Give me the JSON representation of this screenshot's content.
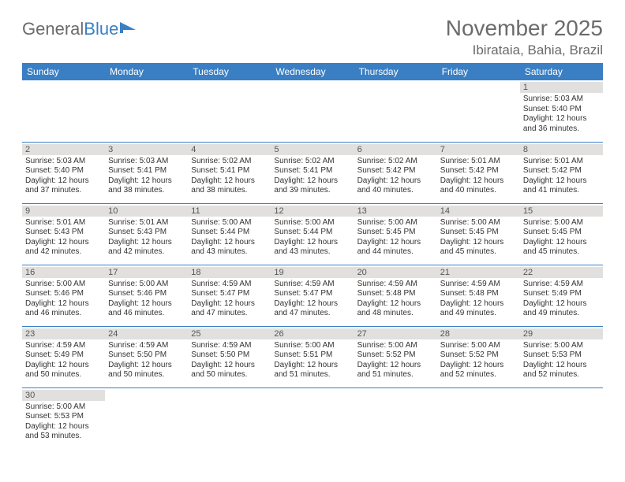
{
  "logo": {
    "text_gray": "General",
    "text_blue": "Blue"
  },
  "title": "November 2025",
  "location": "Ibirataia, Bahia, Brazil",
  "colors": {
    "header_bg": "#3a7fc4",
    "header_text": "#ffffff",
    "daynum_bg": "#e1e0de",
    "body_text": "#333333",
    "title_text": "#6b6b6b",
    "rule": "#3a7fc4"
  },
  "columns": [
    "Sunday",
    "Monday",
    "Tuesday",
    "Wednesday",
    "Thursday",
    "Friday",
    "Saturday"
  ],
  "weeks": [
    [
      null,
      null,
      null,
      null,
      null,
      null,
      {
        "day": "1",
        "sunrise": "Sunrise: 5:03 AM",
        "sunset": "Sunset: 5:40 PM",
        "day1": "Daylight: 12 hours",
        "day2": "and 36 minutes."
      }
    ],
    [
      {
        "day": "2",
        "sunrise": "Sunrise: 5:03 AM",
        "sunset": "Sunset: 5:40 PM",
        "day1": "Daylight: 12 hours",
        "day2": "and 37 minutes."
      },
      {
        "day": "3",
        "sunrise": "Sunrise: 5:03 AM",
        "sunset": "Sunset: 5:41 PM",
        "day1": "Daylight: 12 hours",
        "day2": "and 38 minutes."
      },
      {
        "day": "4",
        "sunrise": "Sunrise: 5:02 AM",
        "sunset": "Sunset: 5:41 PM",
        "day1": "Daylight: 12 hours",
        "day2": "and 38 minutes."
      },
      {
        "day": "5",
        "sunrise": "Sunrise: 5:02 AM",
        "sunset": "Sunset: 5:41 PM",
        "day1": "Daylight: 12 hours",
        "day2": "and 39 minutes."
      },
      {
        "day": "6",
        "sunrise": "Sunrise: 5:02 AM",
        "sunset": "Sunset: 5:42 PM",
        "day1": "Daylight: 12 hours",
        "day2": "and 40 minutes."
      },
      {
        "day": "7",
        "sunrise": "Sunrise: 5:01 AM",
        "sunset": "Sunset: 5:42 PM",
        "day1": "Daylight: 12 hours",
        "day2": "and 40 minutes."
      },
      {
        "day": "8",
        "sunrise": "Sunrise: 5:01 AM",
        "sunset": "Sunset: 5:42 PM",
        "day1": "Daylight: 12 hours",
        "day2": "and 41 minutes."
      }
    ],
    [
      {
        "day": "9",
        "sunrise": "Sunrise: 5:01 AM",
        "sunset": "Sunset: 5:43 PM",
        "day1": "Daylight: 12 hours",
        "day2": "and 42 minutes."
      },
      {
        "day": "10",
        "sunrise": "Sunrise: 5:01 AM",
        "sunset": "Sunset: 5:43 PM",
        "day1": "Daylight: 12 hours",
        "day2": "and 42 minutes."
      },
      {
        "day": "11",
        "sunrise": "Sunrise: 5:00 AM",
        "sunset": "Sunset: 5:44 PM",
        "day1": "Daylight: 12 hours",
        "day2": "and 43 minutes."
      },
      {
        "day": "12",
        "sunrise": "Sunrise: 5:00 AM",
        "sunset": "Sunset: 5:44 PM",
        "day1": "Daylight: 12 hours",
        "day2": "and 43 minutes."
      },
      {
        "day": "13",
        "sunrise": "Sunrise: 5:00 AM",
        "sunset": "Sunset: 5:45 PM",
        "day1": "Daylight: 12 hours",
        "day2": "and 44 minutes."
      },
      {
        "day": "14",
        "sunrise": "Sunrise: 5:00 AM",
        "sunset": "Sunset: 5:45 PM",
        "day1": "Daylight: 12 hours",
        "day2": "and 45 minutes."
      },
      {
        "day": "15",
        "sunrise": "Sunrise: 5:00 AM",
        "sunset": "Sunset: 5:45 PM",
        "day1": "Daylight: 12 hours",
        "day2": "and 45 minutes."
      }
    ],
    [
      {
        "day": "16",
        "sunrise": "Sunrise: 5:00 AM",
        "sunset": "Sunset: 5:46 PM",
        "day1": "Daylight: 12 hours",
        "day2": "and 46 minutes."
      },
      {
        "day": "17",
        "sunrise": "Sunrise: 5:00 AM",
        "sunset": "Sunset: 5:46 PM",
        "day1": "Daylight: 12 hours",
        "day2": "and 46 minutes."
      },
      {
        "day": "18",
        "sunrise": "Sunrise: 4:59 AM",
        "sunset": "Sunset: 5:47 PM",
        "day1": "Daylight: 12 hours",
        "day2": "and 47 minutes."
      },
      {
        "day": "19",
        "sunrise": "Sunrise: 4:59 AM",
        "sunset": "Sunset: 5:47 PM",
        "day1": "Daylight: 12 hours",
        "day2": "and 47 minutes."
      },
      {
        "day": "20",
        "sunrise": "Sunrise: 4:59 AM",
        "sunset": "Sunset: 5:48 PM",
        "day1": "Daylight: 12 hours",
        "day2": "and 48 minutes."
      },
      {
        "day": "21",
        "sunrise": "Sunrise: 4:59 AM",
        "sunset": "Sunset: 5:48 PM",
        "day1": "Daylight: 12 hours",
        "day2": "and 49 minutes."
      },
      {
        "day": "22",
        "sunrise": "Sunrise: 4:59 AM",
        "sunset": "Sunset: 5:49 PM",
        "day1": "Daylight: 12 hours",
        "day2": "and 49 minutes."
      }
    ],
    [
      {
        "day": "23",
        "sunrise": "Sunrise: 4:59 AM",
        "sunset": "Sunset: 5:49 PM",
        "day1": "Daylight: 12 hours",
        "day2": "and 50 minutes."
      },
      {
        "day": "24",
        "sunrise": "Sunrise: 4:59 AM",
        "sunset": "Sunset: 5:50 PM",
        "day1": "Daylight: 12 hours",
        "day2": "and 50 minutes."
      },
      {
        "day": "25",
        "sunrise": "Sunrise: 4:59 AM",
        "sunset": "Sunset: 5:50 PM",
        "day1": "Daylight: 12 hours",
        "day2": "and 50 minutes."
      },
      {
        "day": "26",
        "sunrise": "Sunrise: 5:00 AM",
        "sunset": "Sunset: 5:51 PM",
        "day1": "Daylight: 12 hours",
        "day2": "and 51 minutes."
      },
      {
        "day": "27",
        "sunrise": "Sunrise: 5:00 AM",
        "sunset": "Sunset: 5:52 PM",
        "day1": "Daylight: 12 hours",
        "day2": "and 51 minutes."
      },
      {
        "day": "28",
        "sunrise": "Sunrise: 5:00 AM",
        "sunset": "Sunset: 5:52 PM",
        "day1": "Daylight: 12 hours",
        "day2": "and 52 minutes."
      },
      {
        "day": "29",
        "sunrise": "Sunrise: 5:00 AM",
        "sunset": "Sunset: 5:53 PM",
        "day1": "Daylight: 12 hours",
        "day2": "and 52 minutes."
      }
    ],
    [
      {
        "day": "30",
        "sunrise": "Sunrise: 5:00 AM",
        "sunset": "Sunset: 5:53 PM",
        "day1": "Daylight: 12 hours",
        "day2": "and 53 minutes."
      },
      null,
      null,
      null,
      null,
      null,
      null
    ]
  ]
}
